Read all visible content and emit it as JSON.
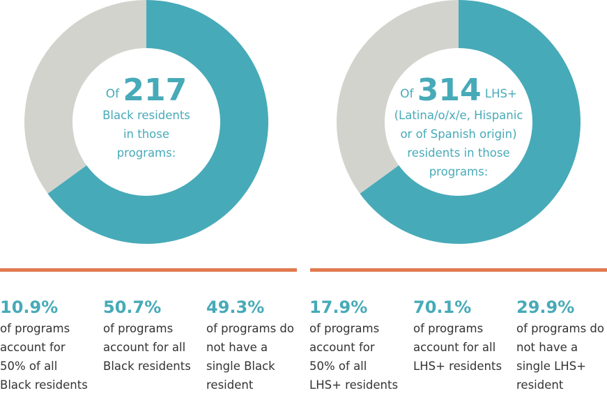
{
  "chart_data": [
    {
      "type": "pie",
      "donut": true,
      "values": [
        65,
        35
      ],
      "colors": [
        "#47aab8",
        "#d3d3ce"
      ],
      "annotation": {
        "prefix": "Of",
        "number": 217,
        "text": "Black residents in those programs:"
      }
    },
    {
      "type": "pie",
      "donut": true,
      "values": [
        65,
        35
      ],
      "colors": [
        "#47aab8",
        "#d3d3ce"
      ],
      "annotation": {
        "prefix": "Of",
        "number": 314,
        "text": "LHS+ (Latina/o/x/e, Hispanic or of Spanish origin) residents in those programs:"
      }
    }
  ],
  "stats": [
    {
      "value": "10.9%",
      "text": "of programs account for 50% of all Black residents"
    },
    {
      "value": "50.7%",
      "text": "of programs account for all Black residents"
    },
    {
      "value": "49.3%",
      "text": "of programs do not have a single Black resident"
    },
    {
      "value": "17.9%",
      "text": "of programs account for 50% of all LHS+ residents"
    },
    {
      "value": "70.1%",
      "text": "of programs account for all LHS+ residents"
    },
    {
      "value": "29.9%",
      "text": "of programs do not have a single LHS+ resident"
    }
  ]
}
